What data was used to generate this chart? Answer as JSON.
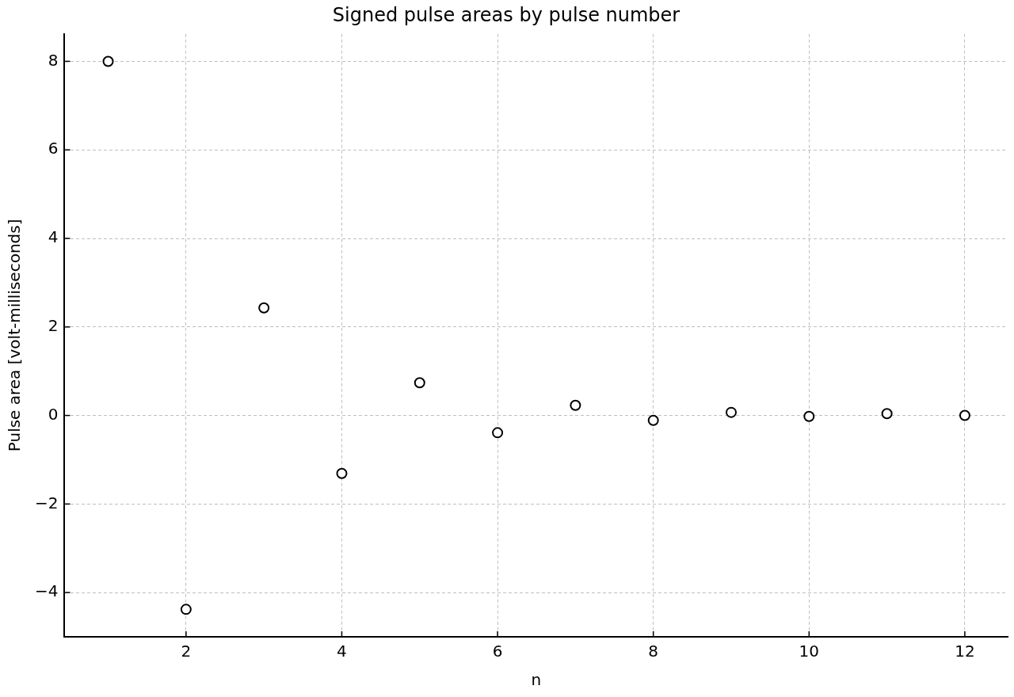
{
  "chart_data": {
    "type": "scatter",
    "title": "Signed pulse areas by pulse number",
    "xlabel": "n",
    "ylabel": "Pulse area [volt-milliseconds]",
    "x": [
      1,
      2,
      3,
      4,
      5,
      6,
      7,
      8,
      9,
      10,
      11,
      12
    ],
    "series": [
      {
        "color": "#000000",
        "values": [
          8.0,
          -4.38,
          2.43,
          -1.31,
          0.74,
          -0.39,
          0.23,
          -0.11,
          0.07,
          -0.02,
          0.04,
          0.0
        ]
      }
    ],
    "xlim": [
      0.44,
      12.55
    ],
    "ylim": [
      -5,
      8.62
    ],
    "xticks": [
      2,
      4,
      6,
      8,
      10,
      12
    ],
    "yticks": [
      -4,
      -2,
      0,
      2,
      4,
      6,
      8
    ],
    "grid": true,
    "legend": false,
    "marker": "circle"
  }
}
